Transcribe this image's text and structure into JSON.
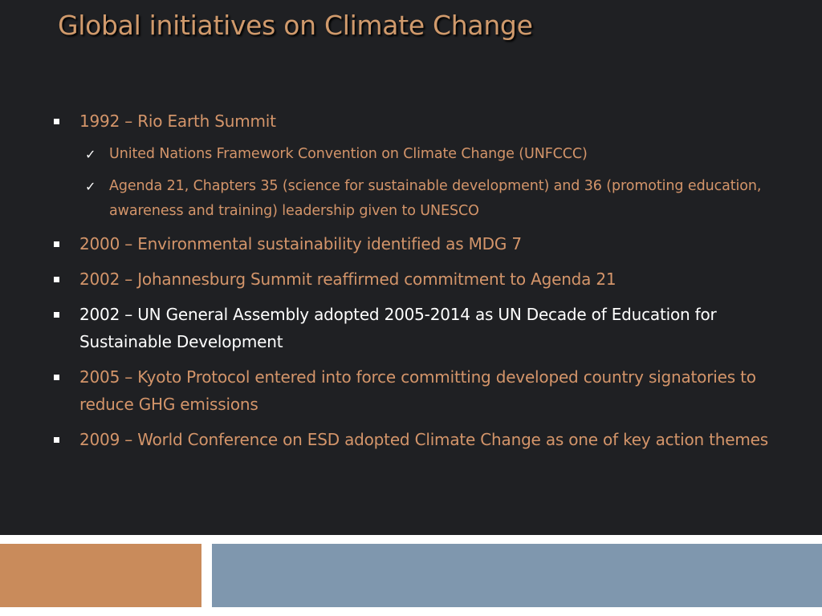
{
  "title": "Global initiatives on Climate Change",
  "colors": {
    "background": "#1f2023",
    "title": "#d09a6c",
    "accent_text": "#d4956a",
    "white_text": "#ffffff",
    "footer_orange": "#c98b5b",
    "footer_blue": "#7f97ae"
  },
  "bullets": [
    {
      "text": "1992 – Rio Earth Summit",
      "sub": [
        "United Nations Framework Convention on Climate Change (UNFCCC)",
        "Agenda 21, Chapters 35 (science for sustainable development) and 36 (promoting education, awareness and training) leadership given to UNESCO"
      ]
    },
    {
      "text": "2000 – Environmental sustainability identified as MDG 7"
    },
    {
      "text": "2002 – Johannesburg Summit reaffirmed commitment to Agenda 21"
    },
    {
      "text": "2002 – UN General Assembly adopted 2005-2014 as UN Decade of Education for Sustainable Development"
    },
    {
      "text": "2005 – Kyoto Protocol entered into force committing developed country signatories to reduce GHG emissions"
    },
    {
      "text": "2009 – World Conference on ESD adopted Climate Change as one of key action themes"
    }
  ]
}
